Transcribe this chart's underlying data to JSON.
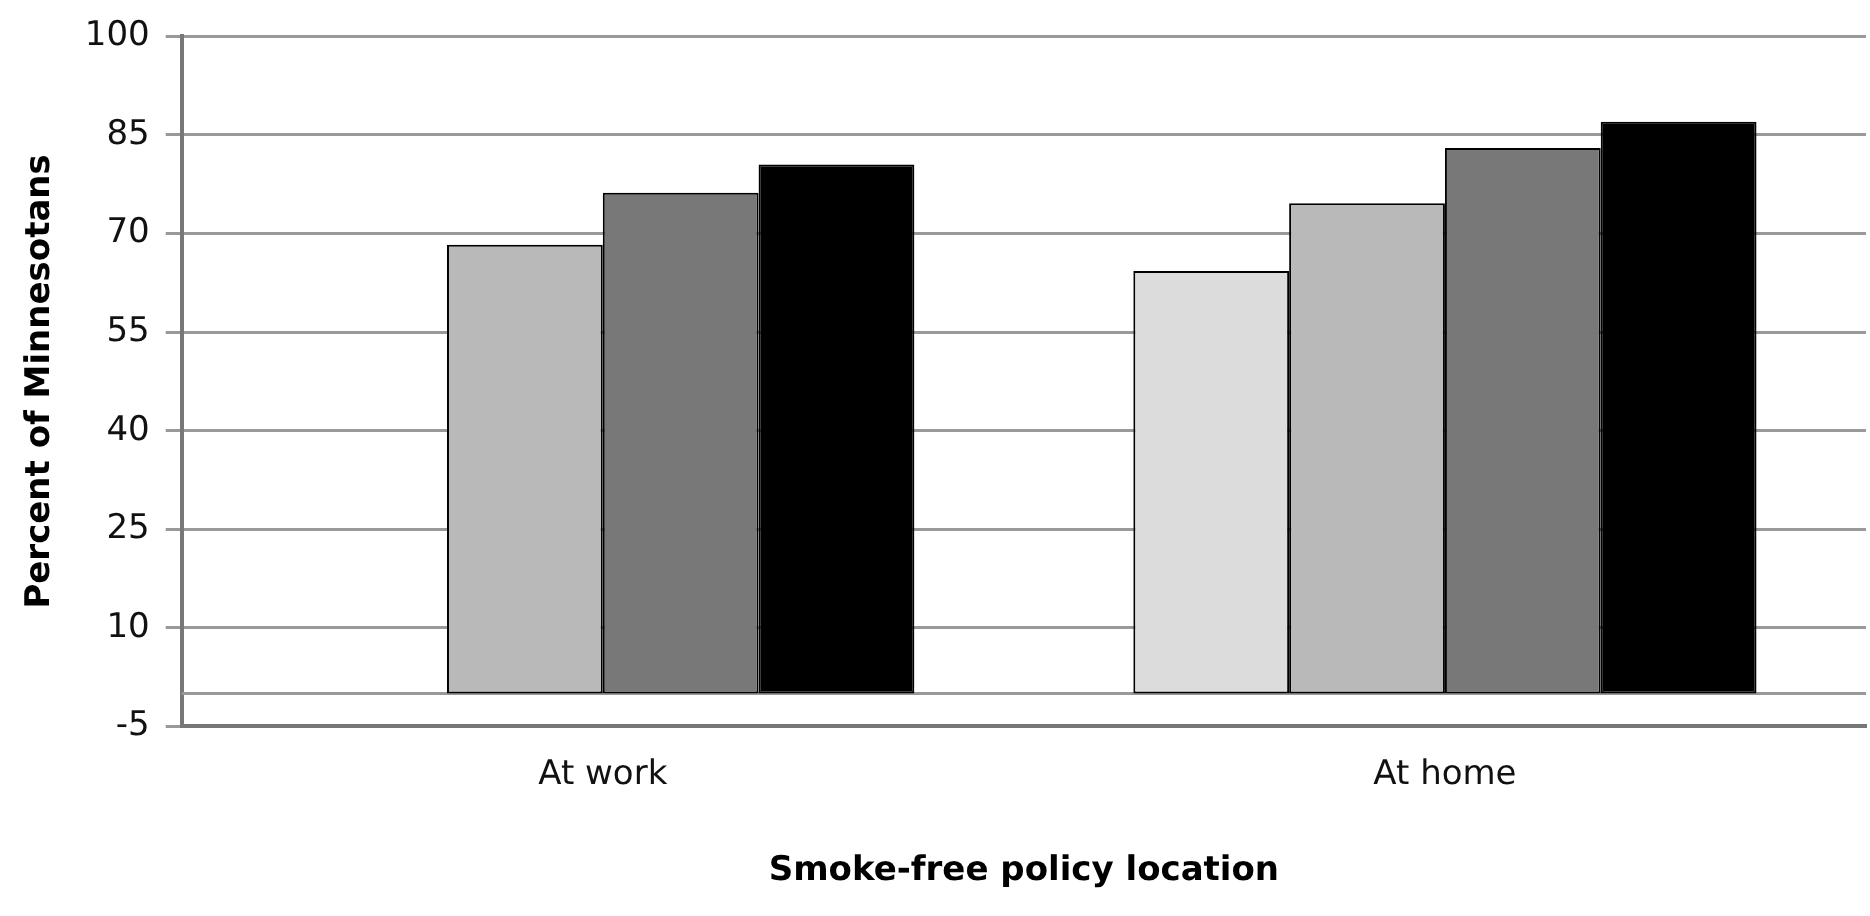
{
  "chart_data": {
    "type": "bar",
    "xlabel": "Smoke-free policy location",
    "ylabel": "Percent of Minnesotans",
    "categories": [
      "At work",
      "At home"
    ],
    "series": [
      {
        "color": "#dcdcdc",
        "values": [
          null,
          64.3
        ]
      },
      {
        "color": "#b9b9b9",
        "values": [
          68.3,
          74.6
        ]
      },
      {
        "color": "#787878",
        "values": [
          76.2,
          83
        ]
      },
      {
        "color": "#000000",
        "values": [
          80.5,
          87
        ]
      }
    ],
    "ylim": [
      -5,
      100
    ],
    "yticks": [
      -5,
      10,
      25,
      40,
      55,
      70,
      85,
      100
    ],
    "grid": "y",
    "ref_lines": [
      {
        "axis": "y",
        "value": 0,
        "color": "#999999"
      }
    ]
  }
}
